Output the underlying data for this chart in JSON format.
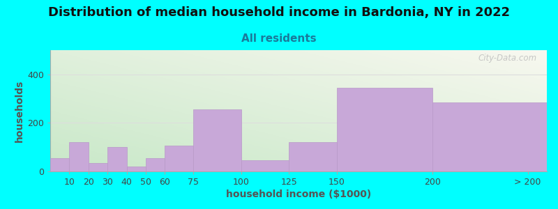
{
  "title": "Distribution of median household income in Bardonia, NY in 2022",
  "subtitle": "All residents",
  "xlabel": "household income ($1000)",
  "ylabel": "households",
  "background_color": "#00FFFF",
  "bar_color": "#c8a8d8",
  "bar_edge_color": "#b898c8",
  "watermark": "City-Data.com",
  "categories": [
    "10",
    "20",
    "30",
    "40",
    "50",
    "60",
    "75",
    "100",
    "125",
    "150",
    "200",
    "> 200"
  ],
  "values": [
    55,
    120,
    35,
    100,
    20,
    55,
    105,
    255,
    45,
    120,
    345,
    285
  ],
  "bar_lefts": [
    0,
    10,
    20,
    30,
    40,
    50,
    60,
    75,
    100,
    125,
    150,
    200
  ],
  "bar_widths": [
    10,
    10,
    10,
    10,
    10,
    10,
    15,
    25,
    25,
    25,
    50,
    60
  ],
  "tick_positions": [
    10,
    20,
    30,
    40,
    50,
    60,
    75,
    100,
    125,
    150,
    200,
    250
  ],
  "tick_labels": [
    "10",
    "20",
    "30",
    "40",
    "50",
    "60",
    "75",
    "100",
    "125",
    "150",
    "200",
    "> 200"
  ],
  "xlim": [
    0,
    260
  ],
  "ylim": [
    0,
    500
  ],
  "yticks": [
    0,
    200,
    400
  ],
  "title_fontsize": 13,
  "subtitle_fontsize": 11,
  "axis_label_fontsize": 10,
  "tick_fontsize": 9,
  "title_color": "#111111",
  "subtitle_color": "#1a7a9a",
  "axis_label_color": "#555555",
  "grid_color": "#dddddd",
  "watermark_color": "#bbbbbb",
  "gradient_top_left": "#c8e8c8",
  "gradient_bottom_right": "#f8f8f0"
}
